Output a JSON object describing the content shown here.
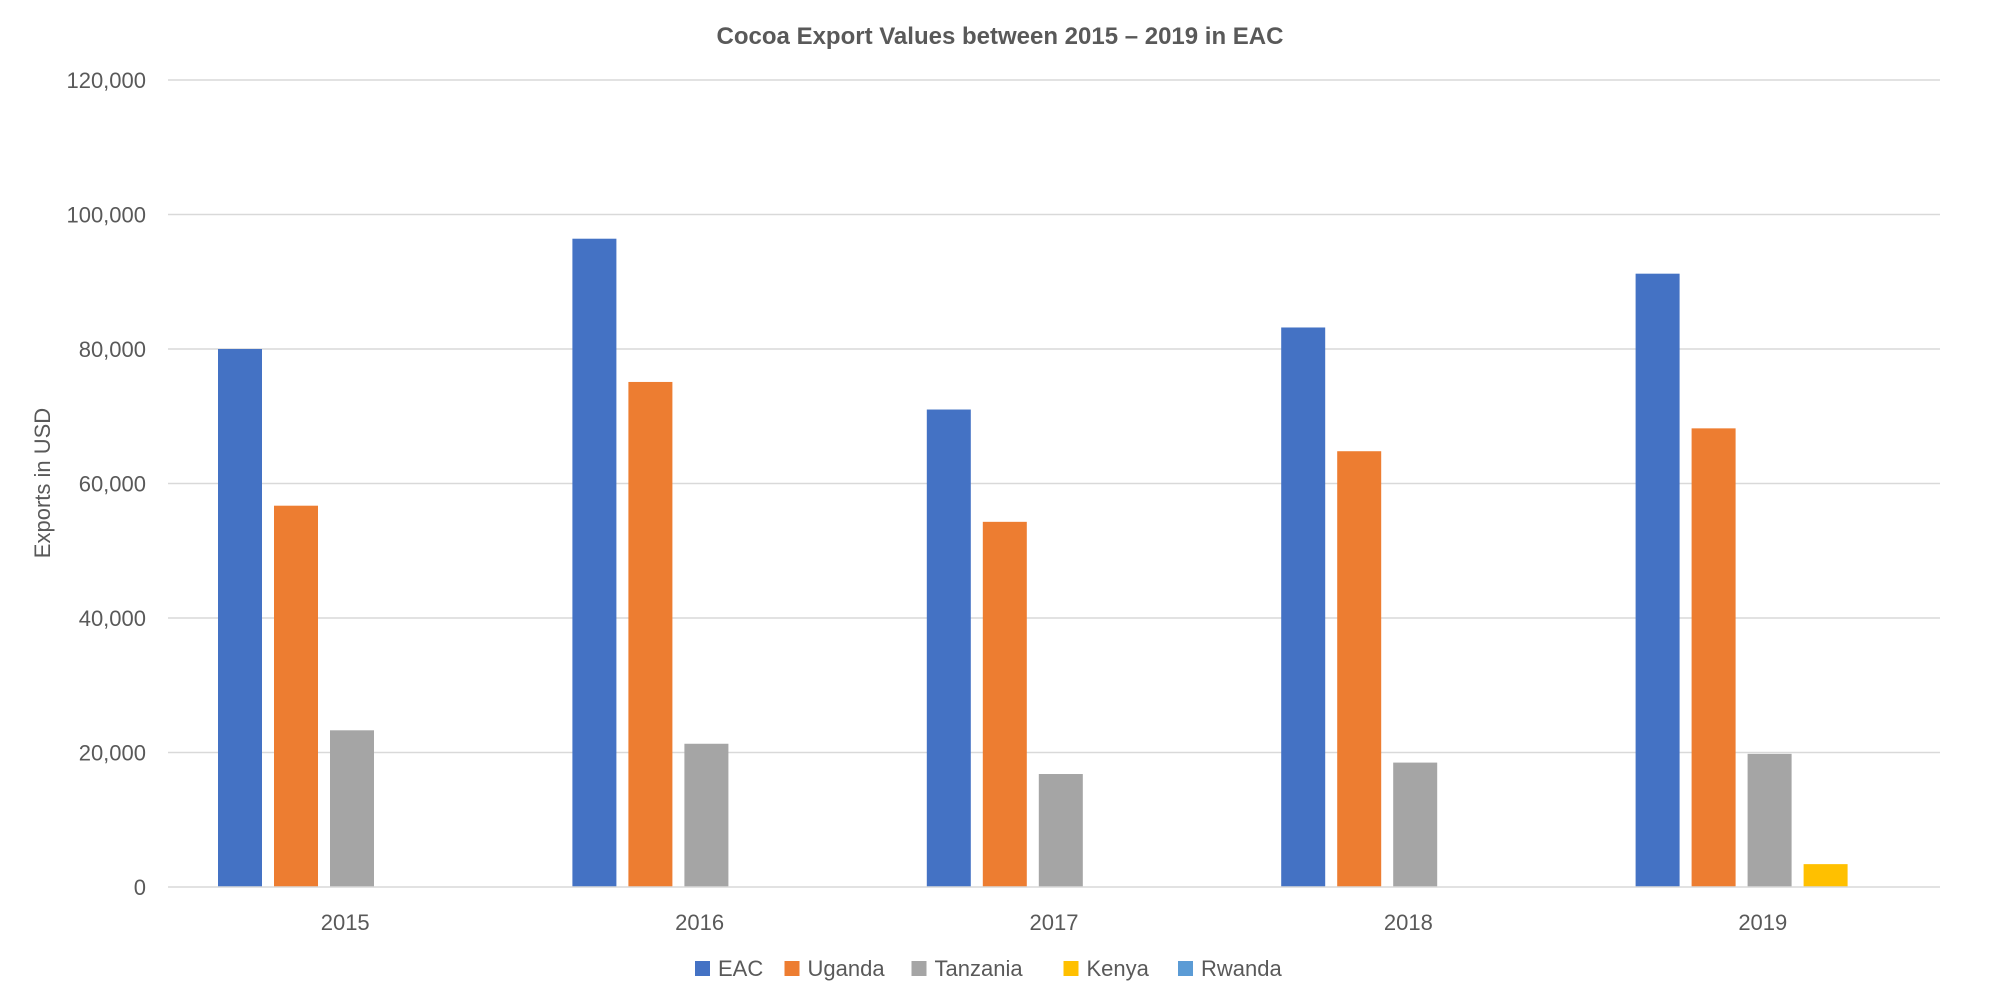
{
  "chart_data": {
    "type": "bar",
    "title": "Cocoa Export Values between 2015 – 2019 in EAC",
    "xlabel": "",
    "ylabel": "Exports in USD",
    "categories": [
      "2015",
      "2016",
      "2017",
      "2018",
      "2019"
    ],
    "ylim": [
      0,
      120000
    ],
    "yticks": [
      0,
      20000,
      40000,
      60000,
      80000,
      100000,
      120000
    ],
    "ytick_labels": [
      "0",
      "20,000",
      "40,000",
      "60,000",
      "80,000",
      "100,000",
      "120,000"
    ],
    "grid": true,
    "legend_position": "bottom",
    "series": [
      {
        "name": "EAC",
        "color": "#4472C4",
        "values": [
          80000,
          96400,
          71000,
          83200,
          91200
        ]
      },
      {
        "name": "Uganda",
        "color": "#ED7D31",
        "values": [
          56700,
          75100,
          54300,
          64800,
          68200
        ]
      },
      {
        "name": "Tanzania",
        "color": "#A5A5A5",
        "values": [
          23300,
          21300,
          16800,
          18500,
          19800
        ]
      },
      {
        "name": "Kenya",
        "color": "#FFC000",
        "values": [
          0,
          0,
          0,
          0,
          3400
        ]
      },
      {
        "name": "Rwanda",
        "color": "#5B9BD5",
        "values": [
          0,
          0,
          0,
          0,
          0
        ]
      }
    ]
  }
}
